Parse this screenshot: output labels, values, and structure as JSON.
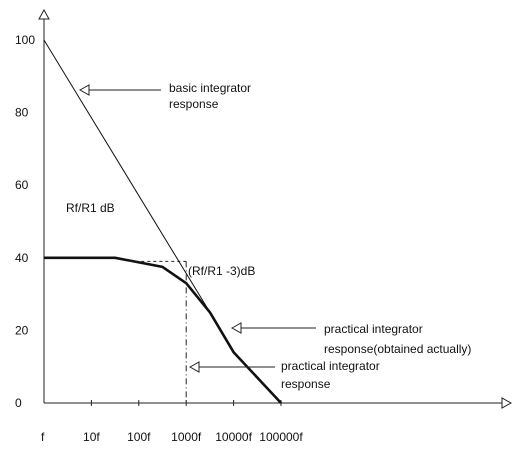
{
  "chart_data": {
    "type": "line",
    "x_ticks": [
      "f",
      "10f",
      "100f",
      "1000f",
      "10000f",
      "100000f"
    ],
    "y_ticks": [
      "0",
      "20",
      "40",
      "60",
      "80",
      "100"
    ],
    "ylim": [
      0,
      100
    ],
    "x_scale": "log (decades)",
    "series": [
      {
        "name": "basic integrator response",
        "points": [
          [
            0,
            100
          ],
          [
            3.5,
            25
          ]
        ]
      },
      {
        "name": "practical integrator response(obtained actually)",
        "points": [
          [
            0,
            40
          ],
          [
            1.5,
            40
          ],
          [
            2.5,
            37.5
          ],
          [
            3,
            33
          ],
          [
            3.5,
            25
          ],
          [
            4,
            14
          ],
          [
            5,
            0
          ]
        ]
      }
    ],
    "reference_lines": [
      {
        "from": [
          1.8,
          39
        ],
        "to": [
          3.0,
          39
        ]
      },
      {
        "from": [
          3.0,
          39
        ],
        "to": [
          3.0,
          0
        ]
      }
    ],
    "annotations": {
      "basic": [
        "basic integrator",
        "response"
      ],
      "practical_actual": [
        "practical integrator",
        "response(obtained actually)"
      ],
      "practical": [
        "practical integrator",
        "response"
      ],
      "gain": "Rf/R1 dB",
      "minus3": "(Rf/R1 -3)dB"
    },
    "grid": false,
    "legend": "none"
  }
}
